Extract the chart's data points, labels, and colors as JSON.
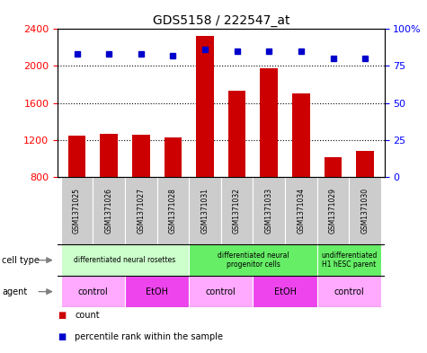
{
  "title": "GDS5158 / 222547_at",
  "samples": [
    "GSM1371025",
    "GSM1371026",
    "GSM1371027",
    "GSM1371028",
    "GSM1371031",
    "GSM1371032",
    "GSM1371033",
    "GSM1371034",
    "GSM1371029",
    "GSM1371030"
  ],
  "counts": [
    1250,
    1270,
    1255,
    1225,
    2320,
    1730,
    1970,
    1700,
    1010,
    1080
  ],
  "percentile_ranks": [
    83,
    83,
    83,
    82,
    86,
    85,
    85,
    85,
    80,
    80
  ],
  "ylim_left": [
    800,
    2400
  ],
  "ylim_right": [
    0,
    100
  ],
  "yticks_left": [
    800,
    1200,
    1600,
    2000,
    2400
  ],
  "yticks_right": [
    0,
    25,
    50,
    75,
    100
  ],
  "bar_color": "#cc0000",
  "dot_color": "#0000cc",
  "cell_type_groups": [
    {
      "label": "differentiated neural rosettes",
      "start": 0,
      "end": 4,
      "color": "#ccffcc"
    },
    {
      "label": "differentiated neural\nprogenitor cells",
      "start": 4,
      "end": 8,
      "color": "#66ee66"
    },
    {
      "label": "undifferentiated\nH1 hESC parent",
      "start": 8,
      "end": 10,
      "color": "#66ee66"
    }
  ],
  "agent_groups": [
    {
      "label": "control",
      "start": 0,
      "end": 2,
      "color": "#ffaaff"
    },
    {
      "label": "EtOH",
      "start": 2,
      "end": 4,
      "color": "#ee44ee"
    },
    {
      "label": "control",
      "start": 4,
      "end": 6,
      "color": "#ffaaff"
    },
    {
      "label": "EtOH",
      "start": 6,
      "end": 8,
      "color": "#ee44ee"
    },
    {
      "label": "control",
      "start": 8,
      "end": 10,
      "color": "#ffaaff"
    }
  ],
  "sample_bg_color": "#cccccc",
  "grid_yticks": [
    1200,
    1600,
    2000
  ]
}
